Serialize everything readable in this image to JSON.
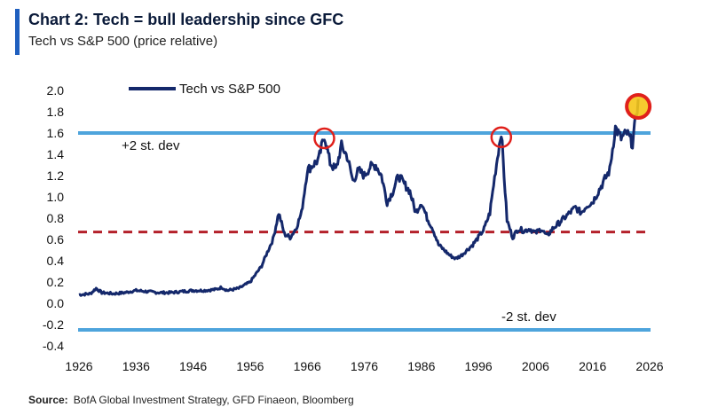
{
  "header": {
    "title": "Chart 2: Tech = bull leadership since GFC",
    "subtitle": "Tech vs S&P 500 (price relative)"
  },
  "footer": {
    "source_label": "Source:",
    "source_text": "BofA Global Investment Strategy, GFD Finaeon, Bloomberg"
  },
  "chart_data": {
    "type": "line",
    "title": "Chart 2: Tech = bull leadership since GFC",
    "subtitle": "Tech vs S&P 500 (price relative)",
    "xlabel": "",
    "ylabel": "",
    "xlim": [
      1926,
      2026
    ],
    "ylim": [
      -0.4,
      2.0
    ],
    "x_ticks": [
      1926,
      1936,
      1946,
      1956,
      1966,
      1976,
      1986,
      1996,
      2006,
      2016,
      2026
    ],
    "y_ticks": [
      2.0,
      1.8,
      1.6,
      1.4,
      1.2,
      1.0,
      0.8,
      0.6,
      0.4,
      0.2,
      0.0,
      -0.2,
      -0.4
    ],
    "y_tick_labels": [
      "2.0",
      "1.8",
      "1.6",
      "1.4",
      "1.2",
      "1.0",
      "0.8",
      "0.6",
      "0.4",
      "0.2",
      "0.0",
      "-0.2",
      "-0.4"
    ],
    "legend": {
      "position": "top-left",
      "entries": [
        "Tech vs S&P 500"
      ]
    },
    "grid": false,
    "series": [
      {
        "name": "Tech vs S&P 500",
        "color": "#14286b",
        "x": [
          1926,
          1928,
          1929,
          1930,
          1932,
          1934,
          1936,
          1938,
          1940,
          1942,
          1944,
          1946,
          1948,
          1950,
          1951,
          1952,
          1953,
          1954,
          1956,
          1958,
          1959,
          1960,
          1961,
          1962,
          1963,
          1964,
          1965,
          1966,
          1967,
          1968,
          1969,
          1970,
          1971,
          1972,
          1973,
          1974,
          1975,
          1976,
          1977,
          1978,
          1979,
          1980,
          1981,
          1982,
          1983,
          1984,
          1985,
          1986,
          1987,
          1988,
          1989,
          1990,
          1991,
          1992,
          1993,
          1994,
          1995,
          1996,
          1997,
          1998,
          1999,
          2000,
          2001,
          2002,
          2003,
          2004,
          2005,
          2006,
          2007,
          2008,
          2009,
          2010,
          2011,
          2012,
          2013,
          2014,
          2015,
          2016,
          2017,
          2018,
          2019,
          2020,
          2021,
          2022,
          2023,
          2024
        ],
        "values": [
          0.08,
          0.09,
          0.14,
          0.1,
          0.09,
          0.1,
          0.12,
          0.11,
          0.1,
          0.1,
          0.11,
          0.12,
          0.12,
          0.13,
          0.15,
          0.12,
          0.13,
          0.14,
          0.2,
          0.35,
          0.48,
          0.6,
          0.85,
          0.65,
          0.62,
          0.7,
          0.85,
          1.25,
          1.3,
          1.35,
          1.58,
          1.32,
          1.25,
          1.48,
          1.38,
          1.15,
          1.25,
          1.2,
          1.28,
          1.3,
          1.2,
          0.95,
          1.05,
          1.2,
          1.12,
          1.05,
          0.85,
          0.95,
          0.8,
          0.7,
          0.55,
          0.5,
          0.45,
          0.42,
          0.45,
          0.5,
          0.55,
          0.62,
          0.7,
          0.85,
          1.25,
          1.62,
          0.78,
          0.62,
          0.7,
          0.68,
          0.7,
          0.66,
          0.7,
          0.63,
          0.7,
          0.75,
          0.8,
          0.85,
          0.9,
          0.85,
          0.92,
          0.95,
          1.05,
          1.15,
          1.25,
          1.65,
          1.55,
          1.6,
          1.5,
          1.92
        ]
      }
    ],
    "reference_lines": [
      {
        "label": "+2 st. dev",
        "value": 1.6,
        "color": "#4ea4dc",
        "style": "solid"
      },
      {
        "label": "",
        "value": 0.67,
        "color": "#b4202a",
        "style": "dashed"
      },
      {
        "label": "-2 st. dev",
        "value": -0.25,
        "color": "#4ea4dc",
        "style": "solid"
      }
    ],
    "highlights": [
      {
        "x": 1969,
        "y": 1.55,
        "color": "#e0201b"
      },
      {
        "x": 2000,
        "y": 1.56,
        "color": "#e0201b"
      },
      {
        "x": 2024,
        "y": 1.85,
        "color": "#e0201b",
        "fill": "#f5c518"
      }
    ]
  }
}
